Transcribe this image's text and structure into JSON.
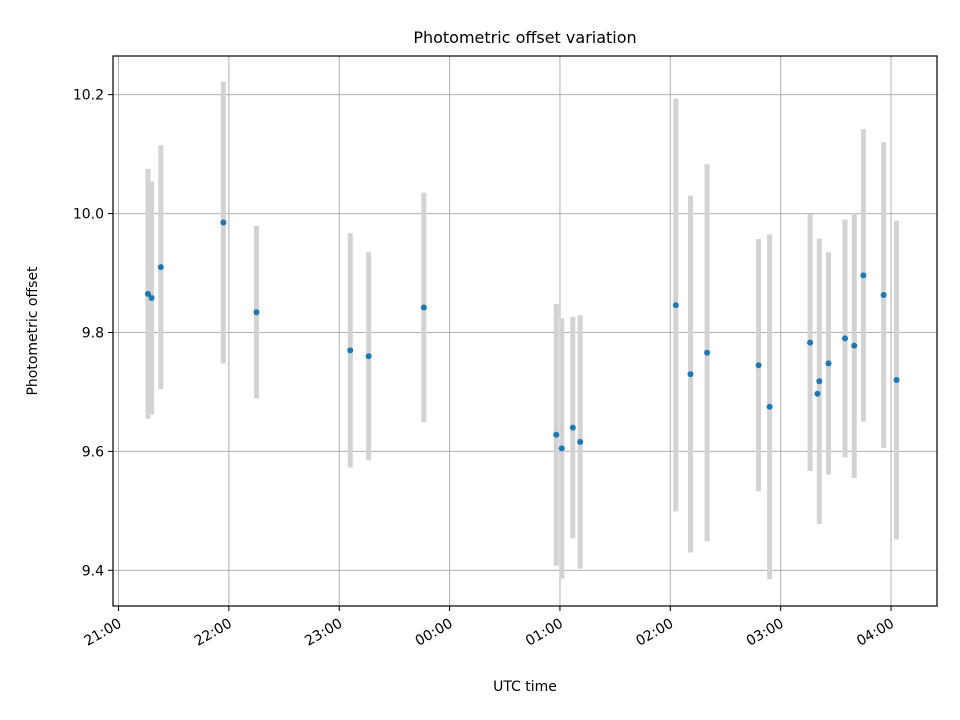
{
  "chart_data": {
    "type": "scatter",
    "title": "Photometric offset variation",
    "xlabel": "UTC time",
    "ylabel": "Photometric offset",
    "x_unit": "time of day (UTC, HH:MM; values after midnight are the following day)",
    "xlim": [
      "20:57",
      "04:25"
    ],
    "ylim": [
      9.34,
      10.265
    ],
    "grid": true,
    "x_ticks": [
      "21:00",
      "22:00",
      "23:00",
      "00:00",
      "01:00",
      "02:00",
      "03:00",
      "04:00"
    ],
    "y_ticks": [
      "9.4",
      "9.6",
      "9.8",
      "10.0",
      "10.2"
    ],
    "colors": {
      "points": "#1f77b4",
      "errorbars": "#d3d3d3",
      "grid": "#b0b0b0"
    },
    "series": [
      {
        "points": [
          {
            "x": "21:16",
            "y": 9.865,
            "err": 0.21
          },
          {
            "x": "21:18",
            "y": 9.858,
            "err": 0.196
          },
          {
            "x": "21:23",
            "y": 9.91,
            "err": 0.205
          },
          {
            "x": "21:57",
            "y": 9.985,
            "err": 0.237
          },
          {
            "x": "22:15",
            "y": 9.834,
            "err": 0.145
          },
          {
            "x": "23:06",
            "y": 9.77,
            "err": 0.197
          },
          {
            "x": "23:16",
            "y": 9.76,
            "err": 0.175
          },
          {
            "x": "23:46",
            "y": 9.842,
            "err": 0.193
          },
          {
            "x": "00:58",
            "y": 9.628,
            "err": 0.22
          },
          {
            "x": "01:01",
            "y": 9.605,
            "err": 0.219
          },
          {
            "x": "01:07",
            "y": 9.64,
            "err": 0.186
          },
          {
            "x": "01:11",
            "y": 9.616,
            "err": 0.213
          },
          {
            "x": "02:03",
            "y": 9.846,
            "err": 0.347
          },
          {
            "x": "02:11",
            "y": 9.73,
            "err": 0.3
          },
          {
            "x": "02:20",
            "y": 9.766,
            "err": 0.317
          },
          {
            "x": "02:48",
            "y": 9.745,
            "err": 0.212
          },
          {
            "x": "02:54",
            "y": 9.675,
            "err": 0.29
          },
          {
            "x": "03:16",
            "y": 9.783,
            "err": 0.216
          },
          {
            "x": "03:20",
            "y": 9.697,
            "err": 0.0
          },
          {
            "x": "03:21",
            "y": 9.718,
            "err": 0.24
          },
          {
            "x": "03:26",
            "y": 9.748,
            "err": 0.187
          },
          {
            "x": "03:35",
            "y": 9.79,
            "err": 0.2
          },
          {
            "x": "03:40",
            "y": 9.778,
            "err": 0.223
          },
          {
            "x": "03:45",
            "y": 9.896,
            "err": 0.246
          },
          {
            "x": "03:56",
            "y": 9.863,
            "err": 0.257
          },
          {
            "x": "04:03",
            "y": 9.72,
            "err": 0.268
          }
        ]
      }
    ]
  }
}
